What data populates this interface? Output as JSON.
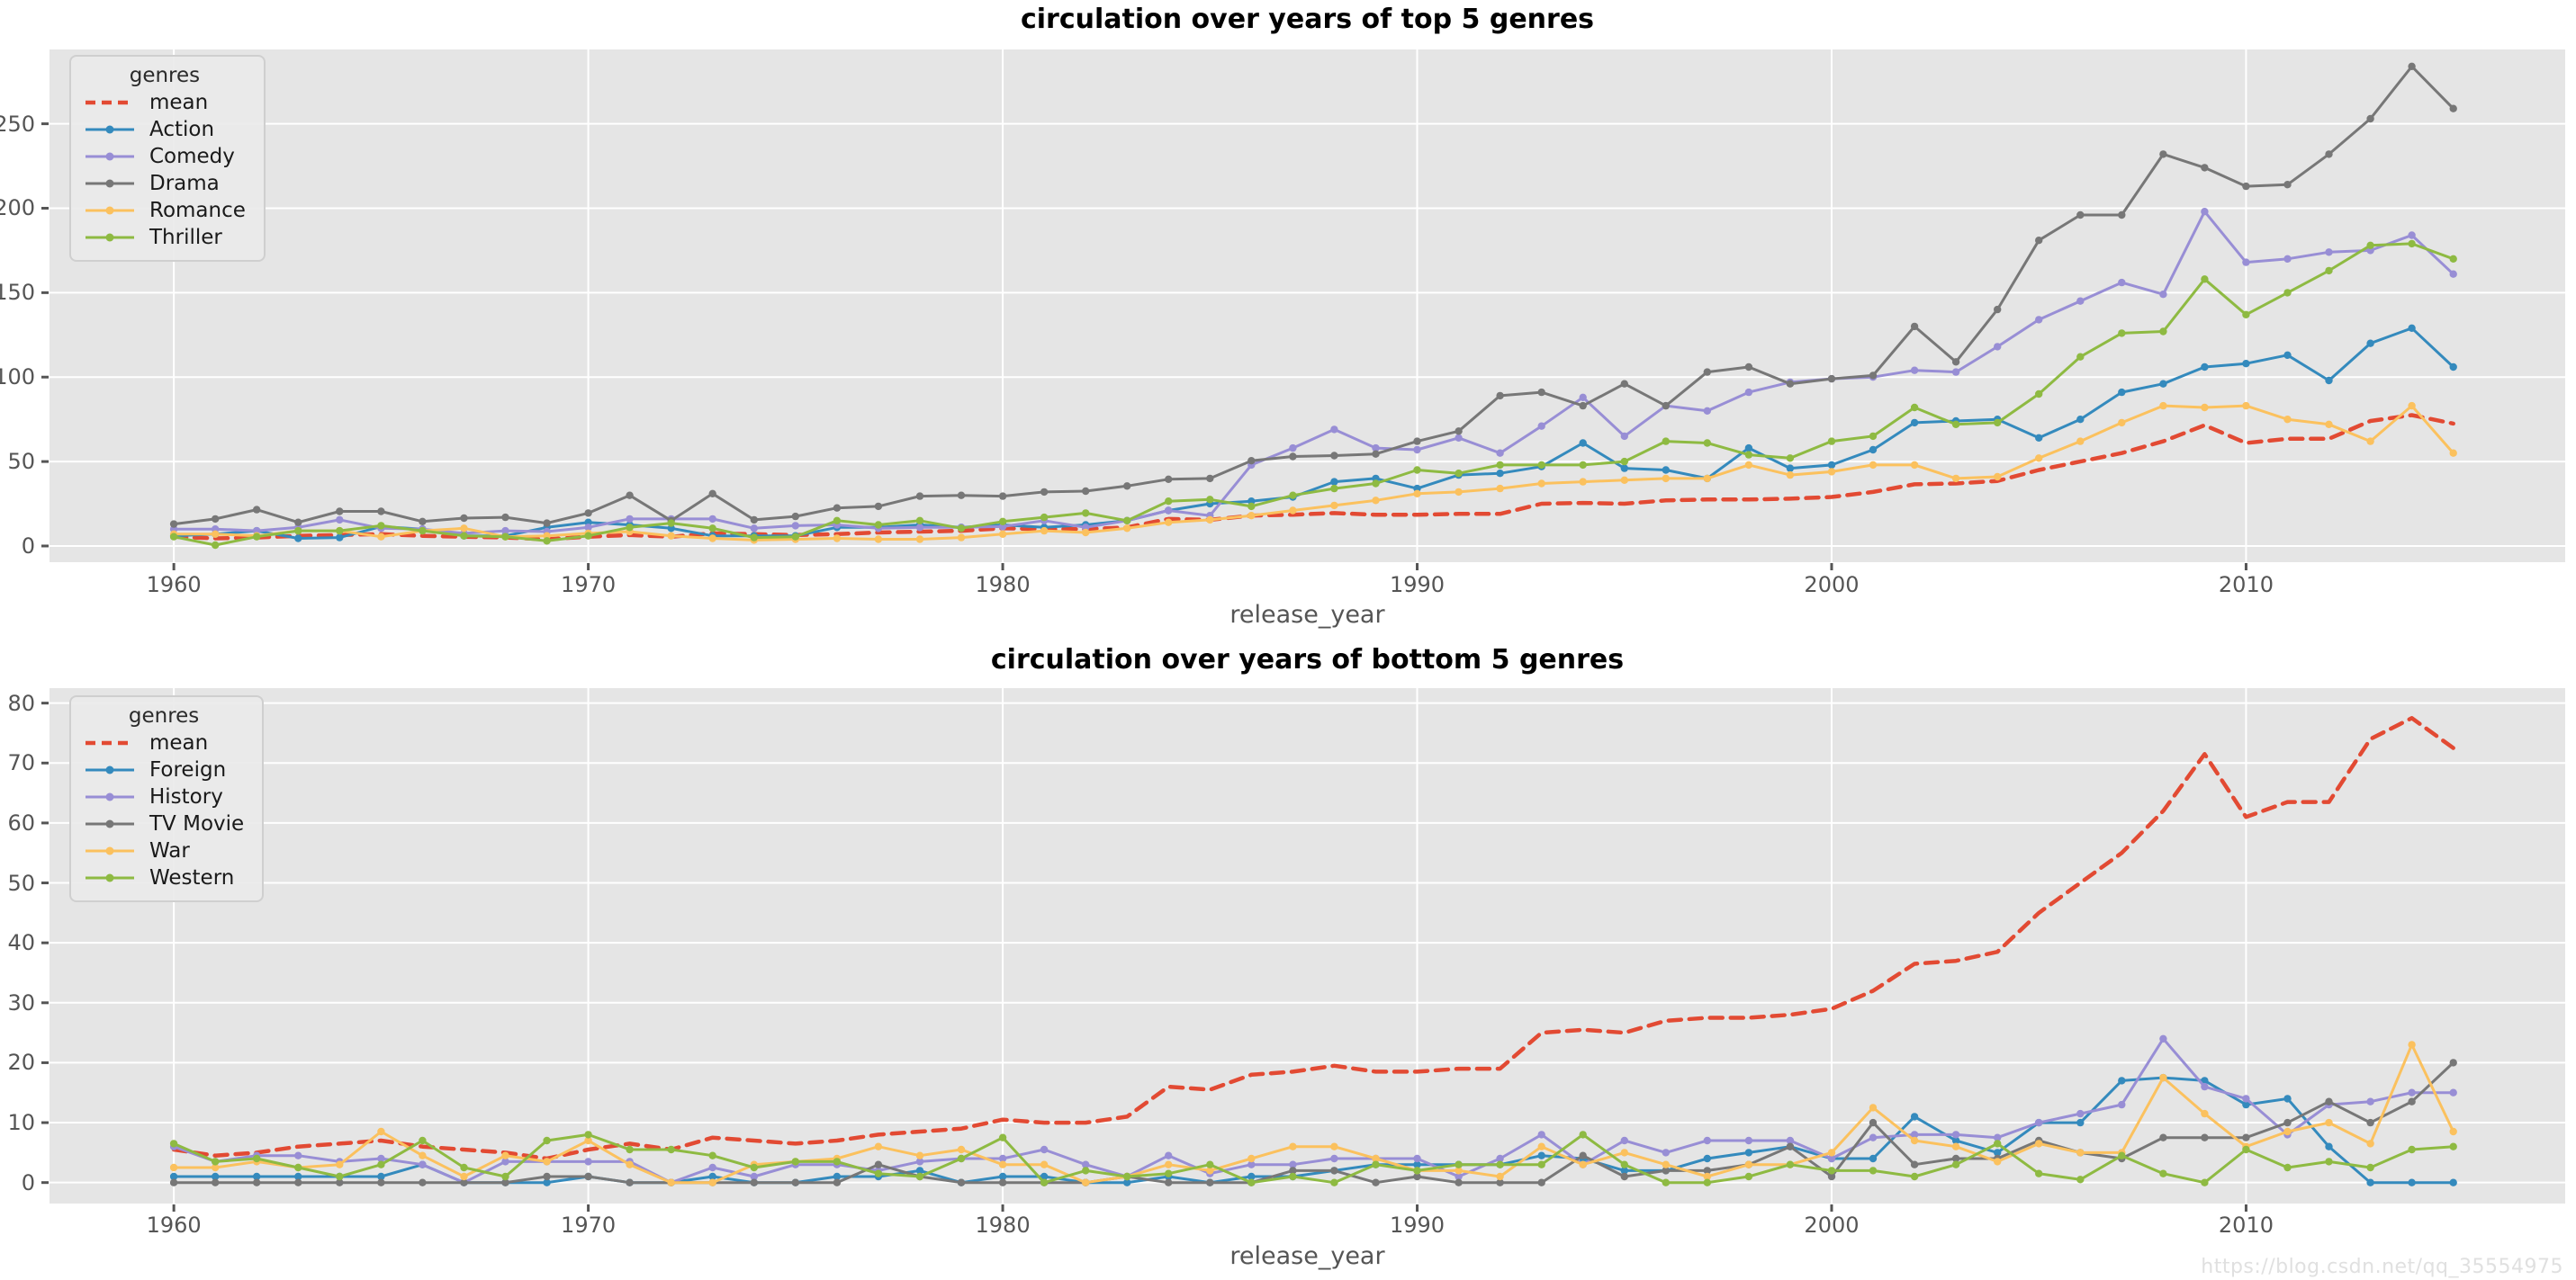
{
  "watermark": "https://blog.csdn.net/qq_35554975",
  "palette": {
    "figure_background": "#FFFFFF",
    "axes_background": "#E5E5E5",
    "grid_color": "#FFFFFF",
    "tick_text_color": "#555555",
    "title_color": "#000000",
    "mean_red": "#E24A33",
    "blue": "#348ABD",
    "purple": "#988ED5",
    "gray": "#777777",
    "orange": "#FBC15E",
    "green": "#8EBA42"
  },
  "chart_data": [
    {
      "type": "line",
      "title": "circulation over years of top 5 genres",
      "xlabel": "release_year",
      "ylabel": "",
      "legend_title": "genres",
      "legend_position": "upper left",
      "grid": true,
      "xlim": [
        1957.0,
        2017.7
      ],
      "ylim": [
        -9.6,
        294
      ],
      "x_ticks": [
        1960,
        1970,
        1980,
        1990,
        2000,
        2010
      ],
      "y_ticks": [
        0,
        50,
        100,
        150,
        200,
        250
      ],
      "x": [
        1960,
        1961,
        1962,
        1963,
        1964,
        1965,
        1966,
        1967,
        1968,
        1969,
        1970,
        1971,
        1972,
        1973,
        1974,
        1975,
        1976,
        1977,
        1978,
        1979,
        1980,
        1981,
        1982,
        1983,
        1984,
        1985,
        1986,
        1987,
        1988,
        1989,
        1990,
        1991,
        1992,
        1993,
        1994,
        1995,
        1996,
        1997,
        1998,
        1999,
        2000,
        2001,
        2002,
        2003,
        2004,
        2005,
        2006,
        2007,
        2008,
        2009,
        2010,
        2011,
        2012,
        2013,
        2014,
        2015
      ],
      "series": [
        {
          "name": "mean",
          "color": "#E24A33",
          "style": "dashed",
          "marker": false,
          "values": [
            5.5,
            4.5,
            5,
            6,
            6.5,
            7,
            6,
            5.5,
            5,
            4,
            5.5,
            6.5,
            5.5,
            7.5,
            7,
            6.5,
            7,
            8,
            8.5,
            9,
            10.5,
            10,
            10,
            11,
            16,
            15.5,
            18,
            18.5,
            19.5,
            18.5,
            18.5,
            19,
            19,
            25,
            25.5,
            25,
            27,
            27.5,
            27.5,
            28,
            29,
            32,
            36.5,
            37,
            38.5,
            45,
            50,
            55,
            62,
            71.5,
            61,
            63.5,
            63.5,
            74,
            77.5,
            72.5
          ]
        },
        {
          "name": "Action",
          "color": "#348ABD",
          "style": "solid",
          "marker": true,
          "values": [
            6,
            7,
            9,
            4.5,
            5,
            11.5,
            10,
            6,
            6,
            11,
            14,
            12.5,
            10.5,
            6,
            6,
            6,
            11,
            11,
            12.5,
            11,
            12.5,
            11,
            12.5,
            15,
            21,
            25,
            26.5,
            29,
            38,
            40,
            34,
            42,
            43,
            47,
            61,
            46,
            45,
            40,
            58,
            46,
            48,
            57,
            73,
            74,
            75,
            64,
            75,
            91,
            96,
            106,
            108,
            113,
            98,
            120,
            129,
            106
          ]
        },
        {
          "name": "Comedy",
          "color": "#988ED5",
          "style": "solid",
          "marker": true,
          "values": [
            10,
            10,
            9,
            11,
            15.5,
            10.5,
            10,
            7.5,
            9,
            8.5,
            11,
            16,
            16,
            16,
            10.5,
            12,
            12.5,
            10.5,
            11,
            11,
            11.5,
            15,
            11,
            15,
            21,
            18,
            48,
            58,
            69,
            58,
            57,
            64,
            55,
            71,
            88,
            65,
            83,
            80,
            91,
            97,
            99,
            100,
            104,
            103,
            118,
            134,
            145,
            156,
            149,
            198,
            168,
            170,
            174,
            175,
            184,
            161
          ]
        },
        {
          "name": "Drama",
          "color": "#777777",
          "style": "solid",
          "marker": true,
          "values": [
            13,
            16,
            21.5,
            14,
            20.5,
            20.5,
            14.5,
            16.5,
            17,
            13.5,
            19.5,
            30,
            15,
            31,
            15.5,
            17.5,
            22.5,
            23.5,
            29.5,
            30,
            29.5,
            32,
            32.5,
            35.5,
            39.5,
            40,
            50.5,
            53,
            53.5,
            54.5,
            62,
            68,
            89,
            91,
            83,
            96,
            83,
            103,
            106,
            96,
            99,
            101,
            130,
            109,
            140,
            181,
            196,
            196,
            232,
            224,
            213,
            214,
            232,
            253,
            284,
            259
          ]
        },
        {
          "name": "Romance",
          "color": "#FBC15E",
          "style": "solid",
          "marker": true,
          "values": [
            7,
            7,
            6,
            9,
            9,
            5.5,
            9,
            10.5,
            5.5,
            6,
            7.5,
            8.5,
            6,
            4.5,
            3.5,
            4,
            4.5,
            4,
            4,
            5,
            7,
            9,
            8,
            10.5,
            14,
            15.5,
            18,
            21,
            24,
            27,
            31,
            32,
            34,
            37,
            38,
            39,
            40,
            40,
            48,
            42,
            44,
            48,
            48,
            40,
            41,
            52,
            62,
            73,
            83,
            82,
            83,
            75,
            72,
            62,
            83,
            55
          ]
        },
        {
          "name": "Thriller",
          "color": "#8EBA42",
          "style": "solid",
          "marker": true,
          "values": [
            5.5,
            0.5,
            5.5,
            9,
            9,
            12,
            9,
            6,
            5.5,
            3,
            6,
            11,
            13.5,
            10.5,
            5,
            5.5,
            15,
            12.5,
            15,
            10.5,
            14.5,
            17,
            19.5,
            15,
            26.5,
            27.5,
            23.5,
            30,
            34,
            37,
            45,
            43,
            48,
            48,
            48,
            50,
            62,
            61,
            54,
            52,
            62,
            65,
            82,
            72,
            73,
            90,
            112,
            126,
            127,
            158,
            137,
            150,
            163,
            178,
            179,
            170
          ]
        }
      ]
    },
    {
      "type": "line",
      "title": "circulation over years of bottom 5 genres",
      "xlabel": "release_year",
      "ylabel": "",
      "legend_title": "genres",
      "legend_position": "upper left",
      "grid": true,
      "xlim": [
        1957.0,
        2017.7
      ],
      "ylim": [
        -3.5,
        82.5
      ],
      "x_ticks": [
        1960,
        1970,
        1980,
        1990,
        2000,
        2010
      ],
      "y_ticks": [
        0,
        10,
        20,
        30,
        40,
        50,
        60,
        70,
        80
      ],
      "x": [
        1960,
        1961,
        1962,
        1963,
        1964,
        1965,
        1966,
        1967,
        1968,
        1969,
        1970,
        1971,
        1972,
        1973,
        1974,
        1975,
        1976,
        1977,
        1978,
        1979,
        1980,
        1981,
        1982,
        1983,
        1984,
        1985,
        1986,
        1987,
        1988,
        1989,
        1990,
        1991,
        1992,
        1993,
        1994,
        1995,
        1996,
        1997,
        1998,
        1999,
        2000,
        2001,
        2002,
        2003,
        2004,
        2005,
        2006,
        2007,
        2008,
        2009,
        2010,
        2011,
        2012,
        2013,
        2014,
        2015
      ],
      "series": [
        {
          "name": "mean",
          "color": "#E24A33",
          "style": "dashed",
          "marker": false,
          "values": [
            5.5,
            4.5,
            5,
            6,
            6.5,
            7,
            6,
            5.5,
            5,
            4,
            5.5,
            6.5,
            5.5,
            7.5,
            7,
            6.5,
            7,
            8,
            8.5,
            9,
            10.5,
            10,
            10,
            11,
            16,
            15.5,
            18,
            18.5,
            19.5,
            18.5,
            18.5,
            19,
            19,
            25,
            25.5,
            25,
            27,
            27.5,
            27.5,
            28,
            29,
            32,
            36.5,
            37,
            38.5,
            45,
            50,
            55,
            62,
            71.5,
            61,
            63.5,
            63.5,
            74,
            77.5,
            72.5
          ]
        },
        {
          "name": "Foreign",
          "color": "#348ABD",
          "style": "solid",
          "marker": true,
          "values": [
            1,
            1,
            1,
            1,
            1,
            1,
            3,
            0,
            0,
            0,
            1,
            0,
            0,
            1,
            0,
            0,
            1,
            1,
            2,
            0,
            1,
            1,
            0,
            0,
            1,
            0,
            1,
            1,
            2,
            3,
            3,
            3,
            3,
            4.5,
            4,
            2,
            2,
            4,
            5,
            6,
            4,
            4,
            11,
            7,
            5,
            10,
            10,
            17,
            17.5,
            17,
            13,
            14,
            6,
            0,
            0,
            0
          ]
        },
        {
          "name": "History",
          "color": "#988ED5",
          "style": "solid",
          "marker": true,
          "values": [
            6,
            3.5,
            4.5,
            4.5,
            3.5,
            4,
            3,
            0,
            3.5,
            3.5,
            3.5,
            3.5,
            0,
            2.5,
            1,
            3,
            3,
            2,
            3.5,
            4,
            4,
            5.5,
            3,
            1,
            4.5,
            1.5,
            3,
            3,
            4,
            4,
            4,
            1,
            4,
            8,
            3,
            7,
            5,
            7,
            7,
            7,
            4,
            7.5,
            8,
            8,
            7.5,
            10,
            11.5,
            13,
            24,
            16,
            14,
            8,
            13,
            13.5,
            15,
            15
          ]
        },
        {
          "name": "TV Movie",
          "color": "#777777",
          "style": "solid",
          "marker": true,
          "values": [
            0,
            0,
            0,
            0,
            0,
            0,
            0,
            0,
            0,
            1,
            1,
            0,
            0,
            0,
            0,
            0,
            0,
            3,
            1,
            0,
            0,
            0,
            0,
            1,
            0,
            0,
            0,
            2,
            2,
            0,
            1,
            0,
            0,
            0,
            4.5,
            1,
            2,
            2,
            3,
            6,
            1,
            10,
            3,
            4,
            4,
            7,
            5,
            4,
            7.5,
            7.5,
            7.5,
            10,
            13.5,
            10,
            13.5,
            20
          ]
        },
        {
          "name": "War",
          "color": "#FBC15E",
          "style": "solid",
          "marker": true,
          "values": [
            2.5,
            2.5,
            3.5,
            2.5,
            3,
            8.5,
            4.5,
            1,
            4.5,
            3.5,
            7,
            3,
            0,
            0,
            3,
            3.5,
            4,
            6,
            4.5,
            5.5,
            3,
            3,
            0,
            1,
            3,
            2,
            4,
            6,
            6,
            4,
            2,
            2,
            1,
            6,
            3,
            5,
            3,
            1,
            3,
            3,
            5,
            12.5,
            7,
            6,
            3.5,
            6.5,
            5,
            5,
            17.5,
            11.5,
            6,
            8.5,
            10,
            6.5,
            23,
            8.5
          ]
        },
        {
          "name": "Western",
          "color": "#8EBA42",
          "style": "solid",
          "marker": true,
          "values": [
            6.5,
            3.5,
            4,
            2.5,
            1,
            3,
            7,
            2.5,
            1,
            7,
            8,
            5.5,
            5.5,
            4.5,
            2.5,
            3.5,
            3.5,
            1.5,
            1,
            4,
            7.5,
            0,
            2,
            1,
            1.5,
            3,
            0,
            1,
            0,
            3,
            2,
            3,
            3,
            3,
            8,
            3,
            0,
            0,
            1,
            3,
            2,
            2,
            1,
            3,
            6.5,
            1.5,
            0.5,
            4.5,
            1.5,
            0,
            5.5,
            2.5,
            3.5,
            2.5,
            5.5,
            6
          ]
        }
      ]
    }
  ]
}
